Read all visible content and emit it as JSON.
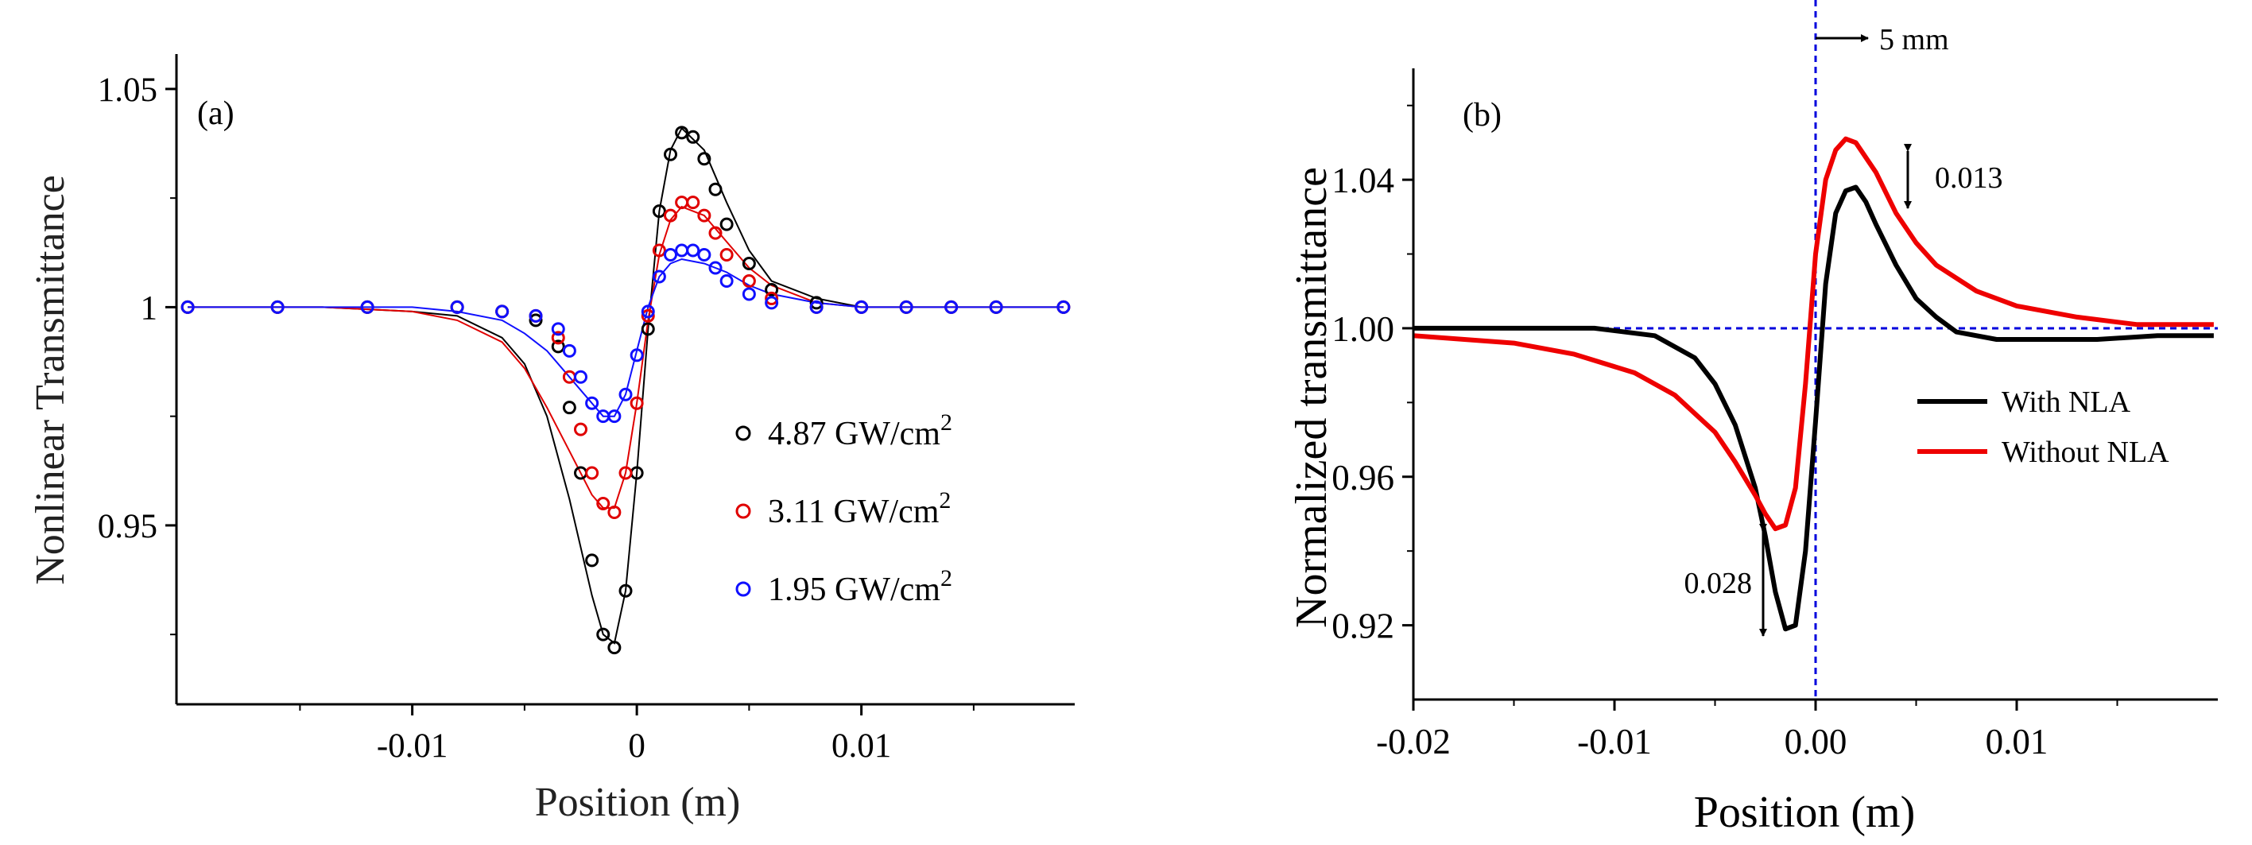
{
  "chart_data": [
    {
      "type": "scatter",
      "panel_label": "(a)",
      "xlabel": "Position (m)",
      "ylabel": "Nonlinear Transmittance",
      "xlim": [
        -0.0205,
        0.0195
      ],
      "ylim": [
        0.909,
        1.058
      ],
      "xticks": [
        -0.01,
        0,
        0.01
      ],
      "xtick_labels": [
        "-0.01",
        "0",
        "0.01"
      ],
      "yticks": [
        0.95,
        1.0,
        1.05
      ],
      "ytick_labels": [
        "0.95",
        "1",
        "1.05"
      ],
      "legend_position": "right",
      "series": [
        {
          "name": "4.87 GW/cm2",
          "label_main": "4.87 GW/cm",
          "label_sup": "2",
          "color": "#000000",
          "marker": "open-circle",
          "x": [
            -0.02,
            -0.016,
            -0.012,
            -0.008,
            -0.006,
            -0.0045,
            -0.0035,
            -0.003,
            -0.0025,
            -0.002,
            -0.0015,
            -0.001,
            -0.0005,
            0.0,
            0.0005,
            0.001,
            0.0015,
            0.002,
            0.0025,
            0.003,
            0.0035,
            0.004,
            0.005,
            0.006,
            0.008,
            0.01,
            0.012,
            0.014,
            0.016,
            0.019
          ],
          "y": [
            1.0,
            1.0,
            1.0,
            1.0,
            0.999,
            0.997,
            0.991,
            0.977,
            0.962,
            0.942,
            0.925,
            0.922,
            0.935,
            0.962,
            0.995,
            1.022,
            1.035,
            1.04,
            1.039,
            1.034,
            1.027,
            1.019,
            1.01,
            1.004,
            1.001,
            1.0,
            1.0,
            1.0,
            1.0,
            1.0
          ]
        },
        {
          "name": "3.11 GW/cm2",
          "label_main": "3.11 GW/cm",
          "label_sup": "2",
          "color": "#e00000",
          "marker": "open-circle",
          "x": [
            -0.02,
            -0.016,
            -0.012,
            -0.008,
            -0.006,
            -0.0045,
            -0.0035,
            -0.003,
            -0.0025,
            -0.002,
            -0.0015,
            -0.001,
            -0.0005,
            0.0,
            0.0005,
            0.001,
            0.0015,
            0.002,
            0.0025,
            0.003,
            0.0035,
            0.004,
            0.005,
            0.006,
            0.008,
            0.01,
            0.012,
            0.014,
            0.016,
            0.019
          ],
          "y": [
            1.0,
            1.0,
            1.0,
            1.0,
            0.999,
            0.998,
            0.993,
            0.984,
            0.972,
            0.962,
            0.955,
            0.953,
            0.962,
            0.978,
            0.998,
            1.013,
            1.021,
            1.024,
            1.024,
            1.021,
            1.017,
            1.012,
            1.006,
            1.002,
            1.0,
            1.0,
            1.0,
            1.0,
            1.0,
            1.0
          ]
        },
        {
          "name": "1.95 GW/cm2",
          "label_main": "1.95 GW/cm",
          "label_sup": "2",
          "color": "#1010ff",
          "marker": "open-circle",
          "x": [
            -0.02,
            -0.016,
            -0.012,
            -0.008,
            -0.006,
            -0.0045,
            -0.0035,
            -0.003,
            -0.0025,
            -0.002,
            -0.0015,
            -0.001,
            -0.0005,
            0.0,
            0.0005,
            0.001,
            0.0015,
            0.002,
            0.0025,
            0.003,
            0.0035,
            0.004,
            0.005,
            0.006,
            0.008,
            0.01,
            0.012,
            0.014,
            0.016,
            0.019
          ],
          "y": [
            1.0,
            1.0,
            1.0,
            1.0,
            0.999,
            0.998,
            0.995,
            0.99,
            0.984,
            0.978,
            0.975,
            0.975,
            0.98,
            0.989,
            0.999,
            1.007,
            1.012,
            1.013,
            1.013,
            1.012,
            1.009,
            1.006,
            1.003,
            1.001,
            1.0,
            1.0,
            1.0,
            1.0,
            1.0,
            1.0
          ]
        }
      ],
      "fits": [
        {
          "color": "#000000",
          "x": [
            -0.02,
            -0.014,
            -0.01,
            -0.008,
            -0.006,
            -0.005,
            -0.004,
            -0.003,
            -0.002,
            -0.0015,
            -0.001,
            -0.0005,
            0.0,
            0.0005,
            0.001,
            0.0015,
            0.002,
            0.003,
            0.004,
            0.005,
            0.006,
            0.008,
            0.01,
            0.012,
            0.016,
            0.019
          ],
          "y": [
            1.0,
            1.0,
            0.999,
            0.998,
            0.993,
            0.987,
            0.975,
            0.956,
            0.934,
            0.925,
            0.923,
            0.935,
            0.962,
            0.995,
            1.022,
            1.036,
            1.041,
            1.036,
            1.024,
            1.013,
            1.006,
            1.002,
            1.0,
            1.0,
            1.0,
            1.0
          ]
        },
        {
          "color": "#e00000",
          "x": [
            -0.02,
            -0.014,
            -0.01,
            -0.008,
            -0.006,
            -0.005,
            -0.004,
            -0.003,
            -0.002,
            -0.0015,
            -0.001,
            -0.0005,
            0.0,
            0.0005,
            0.001,
            0.0015,
            0.002,
            0.003,
            0.004,
            0.005,
            0.006,
            0.008,
            0.01,
            0.012,
            0.016,
            0.019
          ],
          "y": [
            1.0,
            1.0,
            0.999,
            0.997,
            0.992,
            0.986,
            0.977,
            0.967,
            0.957,
            0.954,
            0.954,
            0.962,
            0.978,
            0.997,
            1.012,
            1.02,
            1.023,
            1.021,
            1.015,
            1.009,
            1.005,
            1.001,
            1.0,
            1.0,
            1.0,
            1.0
          ]
        },
        {
          "color": "#1010ff",
          "x": [
            -0.02,
            -0.014,
            -0.01,
            -0.008,
            -0.006,
            -0.005,
            -0.004,
            -0.003,
            -0.002,
            -0.0015,
            -0.001,
            -0.0005,
            0.0,
            0.0005,
            0.001,
            0.0015,
            0.002,
            0.003,
            0.004,
            0.005,
            0.006,
            0.008,
            0.01,
            0.012,
            0.016,
            0.019
          ],
          "y": [
            1.0,
            1.0,
            1.0,
            0.999,
            0.997,
            0.994,
            0.99,
            0.984,
            0.978,
            0.975,
            0.975,
            0.98,
            0.99,
            1.0,
            1.007,
            1.01,
            1.011,
            1.01,
            1.008,
            1.005,
            1.003,
            1.001,
            1.0,
            1.0,
            1.0,
            1.0
          ]
        }
      ]
    },
    {
      "type": "line",
      "panel_label": "(b)",
      "xlabel": "Position (m)",
      "ylabel": "Normalized transmittance",
      "xlim": [
        -0.02,
        0.02
      ],
      "ylim": [
        0.9,
        1.07
      ],
      "xticks": [
        -0.02,
        -0.01,
        0.0,
        0.01
      ],
      "xtick_labels": [
        "-0.02",
        "-0.01",
        "0.00",
        "0.01"
      ],
      "yticks": [
        0.92,
        0.96,
        1.0,
        1.04
      ],
      "ytick_labels": [
        "0.92",
        "0.96",
        "1.00",
        "1.04"
      ],
      "legend_position": "right",
      "series": [
        {
          "name": "With NLA",
          "color": "#000000",
          "x": [
            -0.02,
            -0.015,
            -0.011,
            -0.008,
            -0.006,
            -0.005,
            -0.004,
            -0.003,
            -0.0025,
            -0.002,
            -0.0015,
            -0.001,
            -0.0005,
            0.0,
            0.0005,
            0.001,
            0.0015,
            0.002,
            0.0025,
            0.003,
            0.004,
            0.005,
            0.006,
            0.007,
            0.009,
            0.011,
            0.014,
            0.017,
            0.0198
          ],
          "y": [
            1.0,
            1.0,
            1.0,
            0.998,
            0.992,
            0.985,
            0.974,
            0.957,
            0.944,
            0.929,
            0.919,
            0.92,
            0.94,
            0.975,
            1.012,
            1.031,
            1.037,
            1.038,
            1.034,
            1.028,
            1.017,
            1.008,
            1.003,
            0.999,
            0.997,
            0.997,
            0.997,
            0.998,
            0.998
          ]
        },
        {
          "name": "Without NLA",
          "color": "#ee0000",
          "x": [
            -0.02,
            -0.015,
            -0.012,
            -0.009,
            -0.007,
            -0.005,
            -0.004,
            -0.003,
            -0.0025,
            -0.002,
            -0.0015,
            -0.001,
            -0.0005,
            0.0,
            0.0005,
            0.001,
            0.0015,
            0.002,
            0.003,
            0.004,
            0.005,
            0.006,
            0.008,
            0.01,
            0.013,
            0.016,
            0.0198
          ],
          "y": [
            0.998,
            0.996,
            0.993,
            0.988,
            0.982,
            0.972,
            0.964,
            0.955,
            0.95,
            0.946,
            0.947,
            0.957,
            0.985,
            1.02,
            1.04,
            1.048,
            1.051,
            1.05,
            1.042,
            1.031,
            1.023,
            1.017,
            1.01,
            1.006,
            1.003,
            1.001,
            1.001
          ]
        }
      ],
      "reference_lines": {
        "horizontal_y": 1.0,
        "vertical_x": 0.0,
        "color": "#0000dd"
      },
      "annotations": {
        "top_label": "5 mm",
        "upper_arrow_label": "0.013",
        "lower_arrow_label": "0.028"
      }
    }
  ]
}
